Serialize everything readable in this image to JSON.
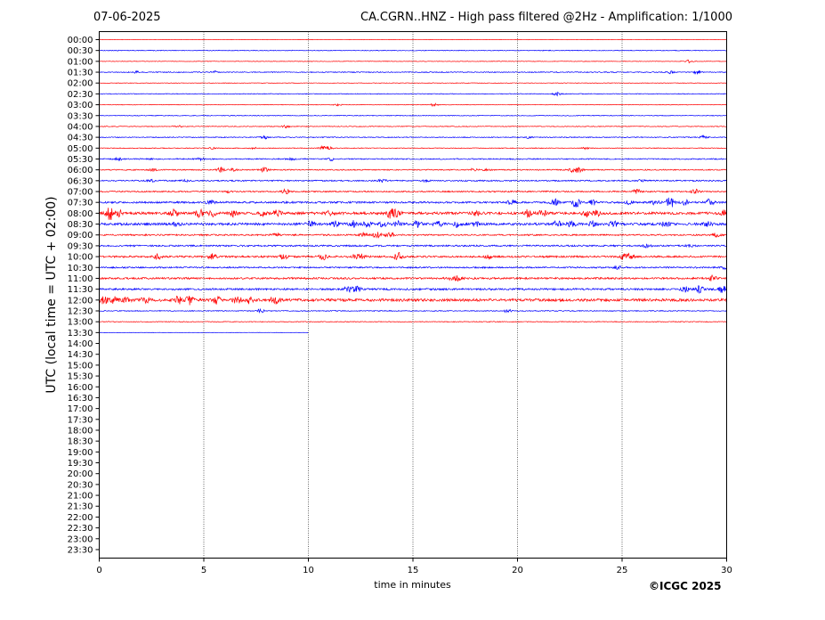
{
  "header": {
    "date": "07-06-2025",
    "title": "CA.CGRN..HNZ - High pass filtered @2Hz - Amplification: 1/1000"
  },
  "footer": {
    "copyright": "©ICGC 2025"
  },
  "colors": {
    "trace_a": "#ff0000",
    "trace_b": "#0000ff",
    "grid": "#000000"
  },
  "chart_data": {
    "type": "line",
    "title": "CA.CGRN..HNZ - High pass filtered @2Hz - Amplification: 1/1000",
    "xlabel": "time in minutes",
    "ylabel": "UTC (local time = UTC + 02:00)",
    "xlim": [
      0,
      30
    ],
    "x_ticks": [
      0,
      5,
      10,
      15,
      20,
      25,
      30
    ],
    "y_tick_labels": [
      "00:00",
      "00:30",
      "01:00",
      "01:30",
      "02:00",
      "02:30",
      "03:00",
      "03:30",
      "04:00",
      "04:30",
      "05:00",
      "05:30",
      "06:00",
      "06:30",
      "07:00",
      "07:30",
      "08:00",
      "08:30",
      "09:00",
      "09:30",
      "10:00",
      "10:30",
      "11:00",
      "11:30",
      "12:00",
      "12:30",
      "13:00",
      "13:30",
      "14:00",
      "14:30",
      "15:00",
      "15:30",
      "16:00",
      "16:30",
      "17:00",
      "17:30",
      "18:00",
      "18:30",
      "19:00",
      "19:30",
      "20:00",
      "20:30",
      "21:00",
      "21:30",
      "22:00",
      "22:30",
      "23:00",
      "23:30"
    ],
    "grid": "vertical dotted lines at x ticks",
    "trace_colors": [
      "#ff0000",
      "#0000ff"
    ],
    "data_end": {
      "row": "13:30",
      "minute": 10
    },
    "traces": [
      {
        "label": "00:00",
        "noise": 0.2,
        "events": []
      },
      {
        "label": "00:30",
        "noise": 0.4,
        "events": []
      },
      {
        "label": "01:00",
        "noise": 0.3,
        "events": [
          [
            28.2,
            1.5
          ]
        ]
      },
      {
        "label": "01:30",
        "noise": 0.5,
        "events": [
          [
            1.8,
            1
          ],
          [
            5.5,
            1
          ],
          [
            27.3,
            1.5
          ],
          [
            28.6,
            2
          ]
        ]
      },
      {
        "label": "02:00",
        "noise": 0.3,
        "events": []
      },
      {
        "label": "02:30",
        "noise": 0.4,
        "events": [
          [
            21.9,
            2
          ]
        ]
      },
      {
        "label": "03:00",
        "noise": 0.3,
        "events": [
          [
            11.4,
            1
          ],
          [
            16,
            1.5
          ]
        ]
      },
      {
        "label": "03:30",
        "noise": 0.4,
        "events": []
      },
      {
        "label": "04:00",
        "noise": 0.4,
        "events": [
          [
            3.8,
            1
          ],
          [
            8.9,
            1.5
          ]
        ]
      },
      {
        "label": "04:30",
        "noise": 0.5,
        "events": [
          [
            7.9,
            1.5
          ],
          [
            20.5,
            1
          ],
          [
            28.9,
            1.5
          ]
        ]
      },
      {
        "label": "05:00",
        "noise": 0.4,
        "events": [
          [
            5.4,
            1
          ],
          [
            7.4,
            1
          ],
          [
            10.7,
            2
          ],
          [
            11,
            1.5
          ],
          [
            23.2,
            1
          ]
        ]
      },
      {
        "label": "05:30",
        "noise": 0.6,
        "events": [
          [
            0.9,
            1.5
          ],
          [
            2.5,
            1
          ],
          [
            4.8,
            2
          ],
          [
            9.2,
            1
          ],
          [
            11.1,
            1.5
          ]
        ]
      },
      {
        "label": "06:00",
        "noise": 0.6,
        "events": [
          [
            2.6,
            1.5
          ],
          [
            5.8,
            3
          ],
          [
            6.4,
            1.5
          ],
          [
            7.9,
            2.5
          ],
          [
            17.9,
            1.5
          ],
          [
            18.5,
            1.5
          ],
          [
            22.6,
            2
          ],
          [
            22.9,
            3
          ]
        ]
      },
      {
        "label": "06:30",
        "noise": 0.7,
        "events": [
          [
            2.5,
            1
          ],
          [
            4.1,
            1
          ],
          [
            13.5,
            2
          ],
          [
            15.6,
            1
          ],
          [
            25.9,
            1
          ]
        ]
      },
      {
        "label": "07:00",
        "noise": 0.7,
        "events": [
          [
            6.2,
            1
          ],
          [
            8.9,
            3
          ],
          [
            25.7,
            2.5
          ],
          [
            28.5,
            2.5
          ]
        ]
      },
      {
        "label": "07:30",
        "noise": 1.0,
        "events": [
          [
            5.3,
            2.5
          ],
          [
            19.7,
            3
          ],
          [
            21.8,
            3.5
          ],
          [
            22.8,
            5
          ],
          [
            23.6,
            3
          ],
          [
            25.3,
            2
          ],
          [
            26.6,
            2.5
          ],
          [
            27.3,
            6
          ],
          [
            28,
            3
          ],
          [
            29.2,
            4
          ]
        ]
      },
      {
        "label": "08:00",
        "noise": 1.4,
        "events": [
          [
            0.5,
            7
          ],
          [
            0.9,
            4
          ],
          [
            3.6,
            4
          ],
          [
            4.8,
            5
          ],
          [
            5.4,
            3
          ],
          [
            6.4,
            3
          ],
          [
            7.8,
            3
          ],
          [
            8.5,
            3.5
          ],
          [
            11,
            2
          ],
          [
            13.9,
            5
          ],
          [
            14.2,
            4
          ],
          [
            18,
            2
          ],
          [
            20.5,
            4
          ],
          [
            21.2,
            3
          ],
          [
            23.3,
            3
          ],
          [
            23.8,
            3
          ],
          [
            29.9,
            3
          ]
        ]
      },
      {
        "label": "08:30",
        "noise": 1.3,
        "events": [
          [
            3.7,
            2
          ],
          [
            10.1,
            3
          ],
          [
            11.3,
            3
          ],
          [
            12.1,
            3.5
          ],
          [
            12.8,
            3
          ],
          [
            13.6,
            3.5
          ],
          [
            14.3,
            3
          ],
          [
            15.2,
            3.5
          ],
          [
            16.2,
            3.5
          ],
          [
            17.1,
            3
          ],
          [
            18,
            3
          ],
          [
            21.9,
            3
          ],
          [
            22.6,
            3
          ],
          [
            23.6,
            3
          ],
          [
            24.6,
            3.5
          ],
          [
            27.1,
            3
          ],
          [
            29.1,
            2
          ]
        ]
      },
      {
        "label": "09:00",
        "noise": 0.8,
        "events": [
          [
            8.4,
            2.5
          ],
          [
            12.6,
            3
          ],
          [
            13.3,
            4
          ],
          [
            13.9,
            3
          ],
          [
            29.5,
            2
          ]
        ]
      },
      {
        "label": "09:30",
        "noise": 0.9,
        "events": [
          [
            26.2,
            1.5
          ],
          [
            28.2,
            1
          ]
        ]
      },
      {
        "label": "10:00",
        "noise": 1.0,
        "events": [
          [
            2.8,
            3
          ],
          [
            5.4,
            3.5
          ],
          [
            8.8,
            3
          ],
          [
            10.7,
            3
          ],
          [
            12.2,
            3.5
          ],
          [
            12.6,
            3
          ],
          [
            14.3,
            4
          ],
          [
            18.6,
            2.5
          ],
          [
            25.1,
            3
          ],
          [
            25.4,
            3
          ]
        ]
      },
      {
        "label": "10:30",
        "noise": 0.8,
        "events": [
          [
            24.8,
            1.5
          ],
          [
            29.9,
            1.5
          ]
        ]
      },
      {
        "label": "11:00",
        "noise": 1.0,
        "events": [
          [
            16.9,
            2
          ],
          [
            17.2,
            3.5
          ],
          [
            29.3,
            4
          ]
        ]
      },
      {
        "label": "11:30",
        "noise": 1.0,
        "events": [
          [
            11.9,
            3
          ],
          [
            12.3,
            3
          ],
          [
            28,
            3
          ],
          [
            28.7,
            3.5
          ],
          [
            29.8,
            4
          ]
        ]
      },
      {
        "label": "12:00",
        "noise": 1.5,
        "events": [
          [
            0.2,
            4
          ],
          [
            0.7,
            3.5
          ],
          [
            1.3,
            3
          ],
          [
            2.2,
            3.5
          ],
          [
            3.8,
            4
          ],
          [
            4.3,
            4.5
          ],
          [
            5.6,
            4
          ],
          [
            6.6,
            4
          ],
          [
            7.2,
            3.5
          ],
          [
            8.4,
            4
          ]
        ]
      },
      {
        "label": "12:30",
        "noise": 0.5,
        "events": [
          [
            7.7,
            2
          ],
          [
            19.5,
            2
          ]
        ]
      },
      {
        "label": "13:00",
        "noise": 0.4,
        "events": []
      },
      {
        "label": "13:30",
        "noise": 0.2,
        "events": []
      }
    ]
  }
}
